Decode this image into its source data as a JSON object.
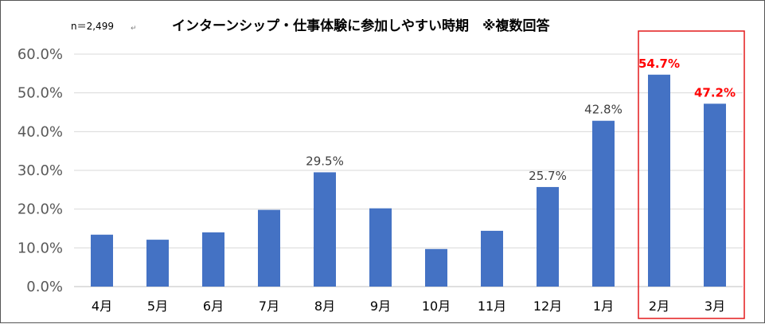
{
  "chart_data": {
    "type": "bar",
    "title": "インターンシップ・仕事体験に参加しやすい時期　※複数回答",
    "sample_note": "n＝2,499",
    "categories": [
      "4月",
      "5月",
      "6月",
      "7月",
      "8月",
      "9月",
      "10月",
      "11月",
      "12月",
      "1月",
      "2月",
      "3月"
    ],
    "values": [
      13.4,
      12.1,
      14.0,
      19.8,
      29.5,
      20.2,
      9.7,
      14.4,
      25.7,
      42.8,
      54.7,
      47.2
    ],
    "data_labels": [
      "",
      "",
      "",
      "",
      "29.5%",
      "",
      "",
      "",
      "25.7%",
      "42.8%",
      "54.7%",
      "47.2%"
    ],
    "highlighted_categories": [
      "2月",
      "3月"
    ],
    "y_ticks": [
      "0.0%",
      "10.0%",
      "20.0%",
      "30.0%",
      "40.0%",
      "50.0%",
      "60.0%"
    ],
    "ylim": [
      0,
      60
    ],
    "xlabel": "",
    "ylabel": "",
    "grid": true,
    "legend": "none",
    "colors": {
      "bar": "#4472c4",
      "highlight_label": "#ff0000",
      "highlight_box": "#e31a1c",
      "grid": "#d9d9d9"
    }
  }
}
